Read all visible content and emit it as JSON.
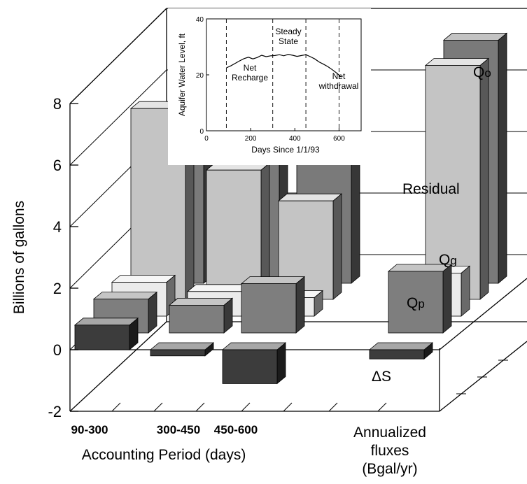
{
  "chart_data": [
    {
      "type": "bar",
      "chart": "main-3d-bar",
      "ylabel": "Billions of gallons",
      "xlabel": "Accounting Period (days)",
      "annualized_label": [
        "Annualized",
        "fluxes",
        "(Bgal/yr)"
      ],
      "ylim": [
        -2,
        8
      ],
      "yticks": [
        "-2",
        "0",
        "2",
        "4",
        "6",
        "8"
      ],
      "categories": [
        "90-300",
        "300-450",
        "450-600"
      ],
      "series": [
        {
          "name": "Qo",
          "values": [
            5.6,
            5.1,
            4.5
          ],
          "annualized": 7.9,
          "color": "#7a7a7a"
        },
        {
          "name": "Residual",
          "values": [
            6.2,
            4.2,
            3.2
          ],
          "annualized": 7.6,
          "color": "#c4c4c4"
        },
        {
          "name": "Qg",
          "values": [
            1.1,
            0.8,
            0.6
          ],
          "annualized": 1.4,
          "color": "#ebebeb"
        },
        {
          "name": "Qp",
          "values": [
            1.1,
            0.9,
            1.6
          ],
          "annualized": 2.0,
          "color": "#7e7e7e"
        },
        {
          "name": "ΔS",
          "values": [
            0.8,
            -0.2,
            -1.1
          ],
          "annualized": -0.3,
          "color": "#3c3c3c"
        }
      ]
    },
    {
      "type": "line",
      "chart": "inset",
      "ylabel": "Aquifer Water Level, ft",
      "xlabel": "Days Since 1/1/93",
      "xlim": [
        0,
        700
      ],
      "ylim": [
        0,
        40
      ],
      "xticks": [
        "0",
        "200",
        "400",
        "600"
      ],
      "yticks": [
        "0",
        "20",
        "40"
      ],
      "dividers": [
        90,
        300,
        450,
        600
      ],
      "annotations": [
        {
          "lines": [
            "Net",
            "Recharge"
          ]
        },
        {
          "lines": [
            "Steady",
            "State"
          ]
        },
        {
          "lines": [
            "Net",
            "withdrawal"
          ]
        }
      ],
      "x": [
        90,
        110,
        130,
        150,
        170,
        190,
        210,
        230,
        250,
        270,
        290,
        310,
        330,
        350,
        370,
        390,
        410,
        430,
        450,
        470,
        490,
        510,
        530,
        550,
        570,
        590,
        610
      ],
      "y": [
        22.5,
        23.2,
        24.1,
        25.0,
        25.8,
        26.3,
        25.7,
        26.2,
        27.0,
        26.5,
        26.8,
        26.9,
        27.2,
        26.8,
        27.3,
        27.0,
        26.6,
        26.9,
        27.2,
        26.5,
        25.7,
        24.6,
        23.8,
        22.9,
        21.8,
        20.6,
        19.2
      ]
    }
  ]
}
